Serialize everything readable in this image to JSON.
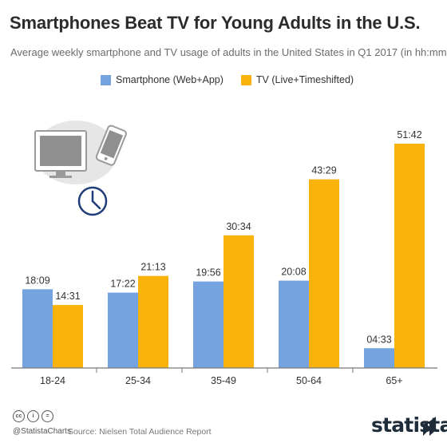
{
  "header": {
    "title": "Smartphones Beat TV for Young Adults in the U.S.",
    "subtitle": "Average weekly smartphone and TV usage of adults in the United States in Q1 2017 (in hh:mm)"
  },
  "colors": {
    "smartphone": "#74a3e0",
    "tv": "#fab30d",
    "axis": "#777777",
    "text": "#333333"
  },
  "chart_data": {
    "type": "bar",
    "categories": [
      "18-24",
      "25-34",
      "35-49",
      "50-64",
      "65+"
    ],
    "series": [
      {
        "name": "Smartphone (Web+App)",
        "values": [
          18.15,
          17.367,
          19.933,
          20.133,
          4.55
        ],
        "labels": [
          "18:09",
          "17:22",
          "19:56",
          "20:08",
          "04:33"
        ]
      },
      {
        "name": "TV (Live+Timeshifted)",
        "values": [
          14.517,
          21.217,
          30.567,
          43.483,
          51.7
        ],
        "labels": [
          "14:31",
          "21:13",
          "30:34",
          "43:29",
          "51:42"
        ]
      }
    ],
    "ylim": [
      0,
      55
    ],
    "grid": false,
    "legend": "top"
  },
  "icons": {
    "devices": "tv-smartphone-clock-icon"
  },
  "footer": {
    "cc": [
      "cc",
      "i",
      "="
    ],
    "handle": "@StatistaCharts",
    "source": "Source: Nielsen Total Audience Report",
    "brand": "statista"
  }
}
